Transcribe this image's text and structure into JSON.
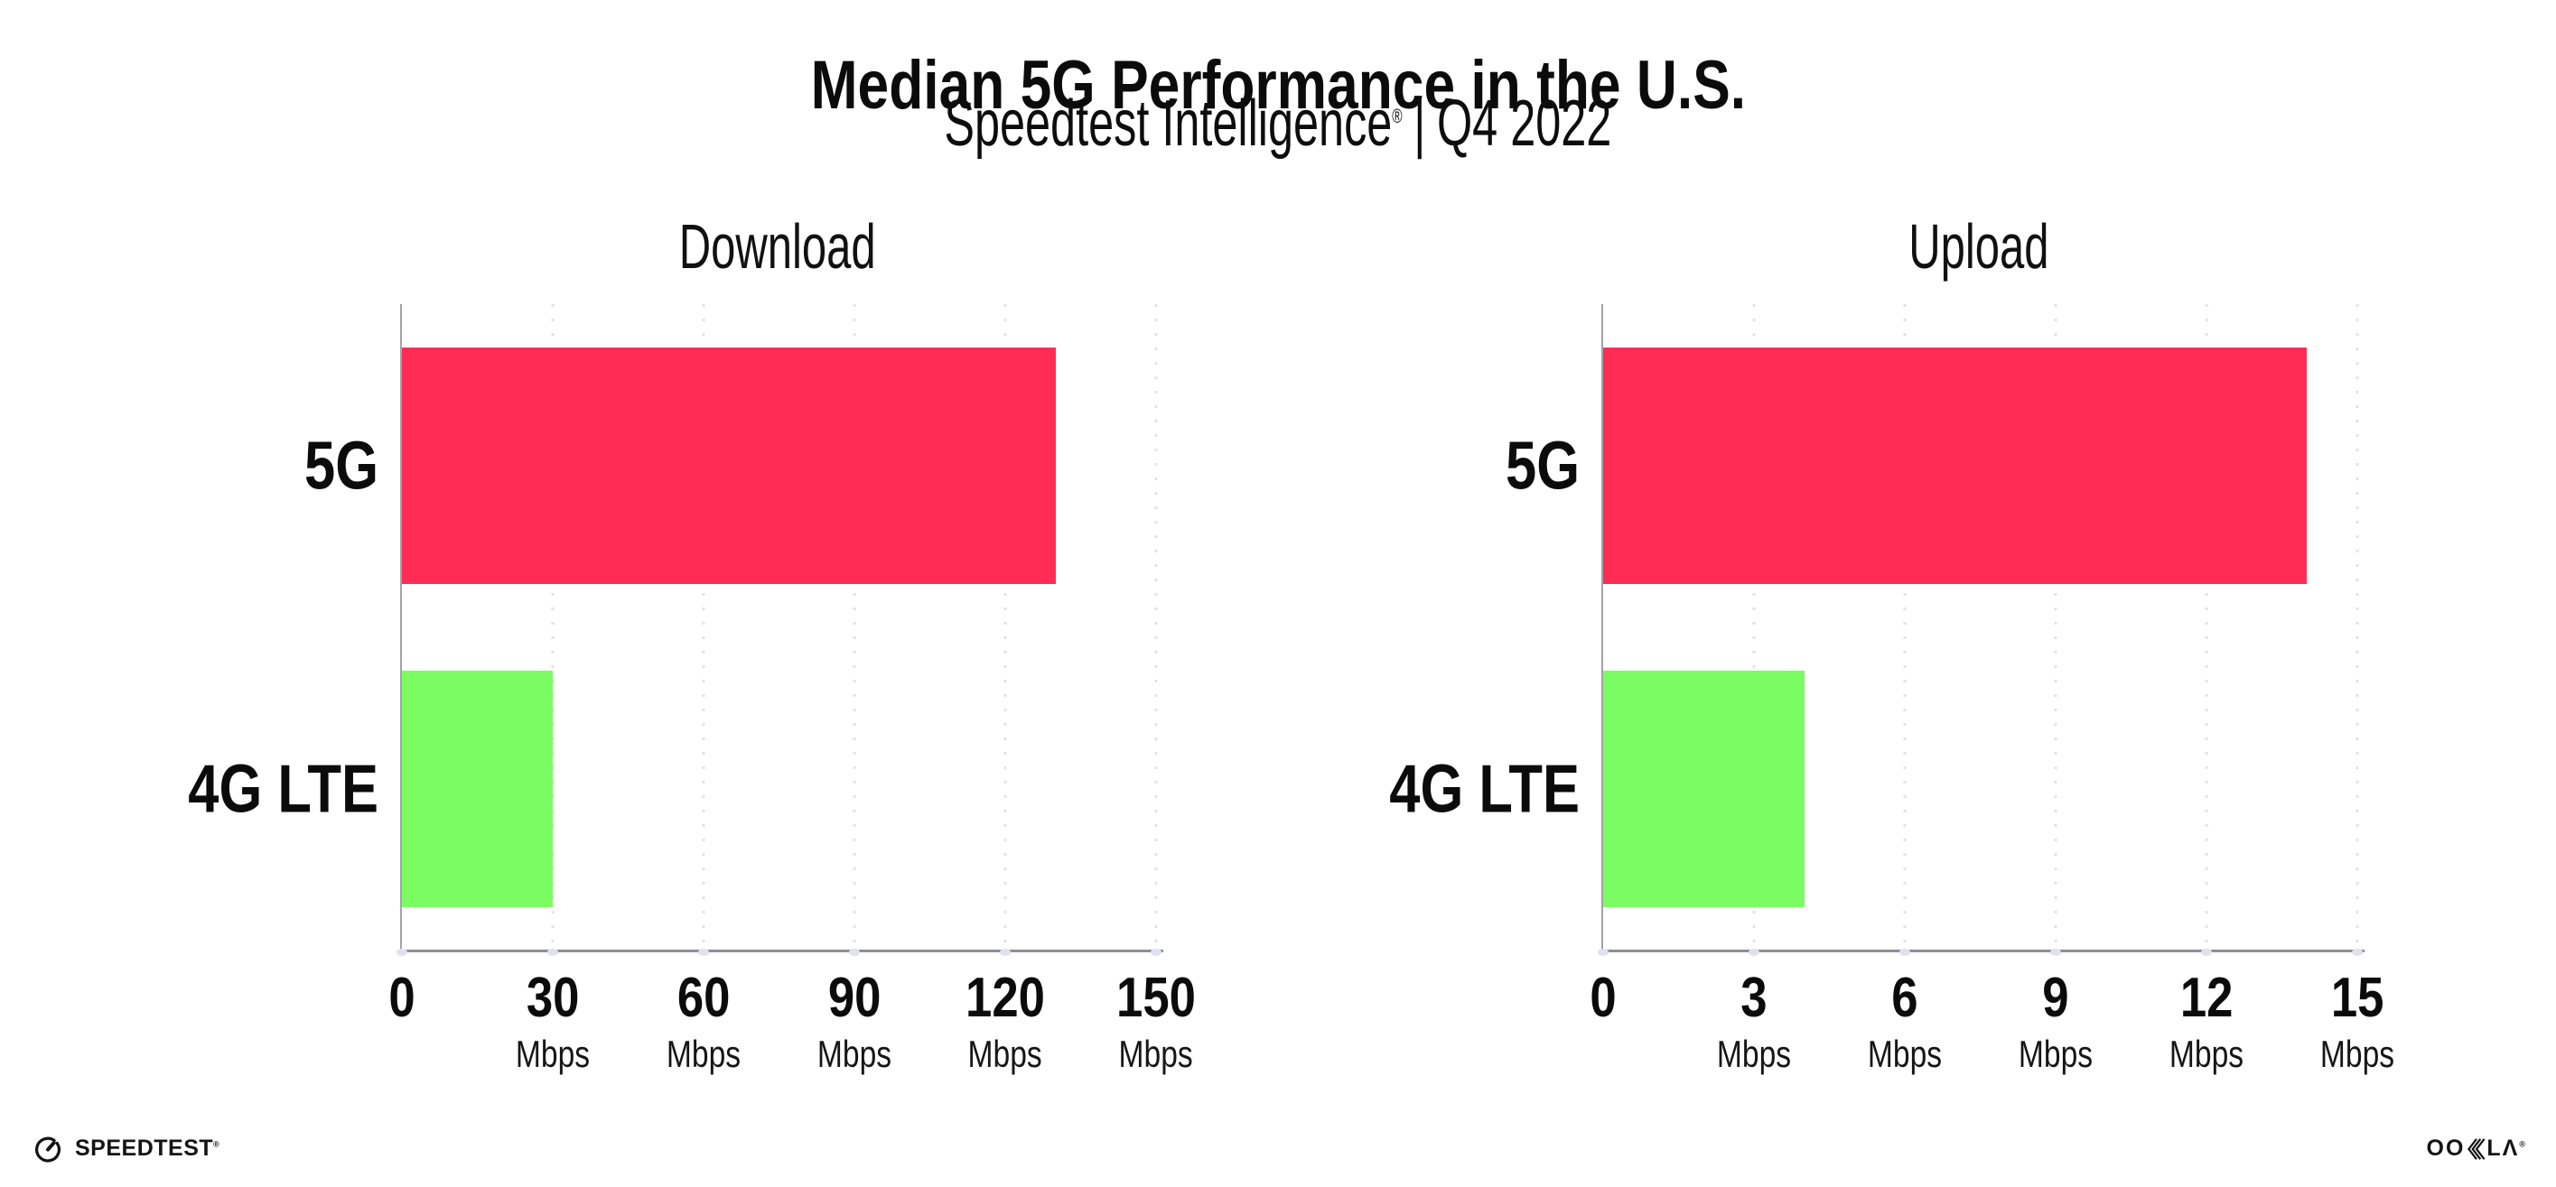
{
  "header": {
    "title": "Median 5G Performance in the U.S.",
    "subtitle_brand": "Speedtest Intelligence",
    "subtitle_reg": "®",
    "subtitle_separator": "|",
    "subtitle_period": "Q4 2022"
  },
  "chart_data": [
    {
      "type": "bar",
      "orientation": "horizontal",
      "title": "Download",
      "categories": [
        "5G",
        "4G LTE"
      ],
      "values": [
        130,
        30
      ],
      "unit": "Mbps",
      "xlim": [
        0,
        150
      ],
      "xticks": [
        0,
        30,
        60,
        90,
        120,
        150
      ],
      "tick_labels": [
        {
          "value": "0",
          "unit": ""
        },
        {
          "value": "30",
          "unit": "Mbps"
        },
        {
          "value": "60",
          "unit": "Mbps"
        },
        {
          "value": "90",
          "unit": "Mbps"
        },
        {
          "value": "120",
          "unit": "Mbps"
        },
        {
          "value": "150",
          "unit": "Mbps"
        }
      ],
      "bar_colors": [
        "#ff2d55",
        "#7cfc63"
      ],
      "grid": "vertical-dotted",
      "legend": "none"
    },
    {
      "type": "bar",
      "orientation": "horizontal",
      "title": "Upload",
      "categories": [
        "5G",
        "4G LTE"
      ],
      "values": [
        14,
        4
      ],
      "unit": "Mbps",
      "xlim": [
        0,
        15
      ],
      "xticks": [
        0,
        3,
        6,
        9,
        12,
        15
      ],
      "tick_labels": [
        {
          "value": "0",
          "unit": ""
        },
        {
          "value": "3",
          "unit": "Mbps"
        },
        {
          "value": "6",
          "unit": "Mbps"
        },
        {
          "value": "9",
          "unit": "Mbps"
        },
        {
          "value": "12",
          "unit": "Mbps"
        },
        {
          "value": "15",
          "unit": "Mbps"
        }
      ],
      "bar_colors": [
        "#ff2d55",
        "#7cfc63"
      ],
      "grid": "vertical-dotted",
      "legend": "none"
    }
  ],
  "footer": {
    "speedtest_word": "SPEEDTEST",
    "speedtest_reg": "®",
    "ookla_left": "OO",
    "ookla_right": "LΛ",
    "ookla_reg": "®"
  },
  "colors": {
    "bar_5g": "#ff2d55",
    "bar_4g_lte": "#7cfc63",
    "gridline": "#e1e2ec",
    "axis": "#8e8e93",
    "text": "#0b0b0b"
  }
}
